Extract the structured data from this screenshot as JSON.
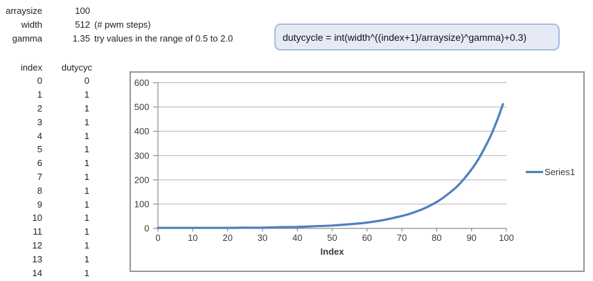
{
  "sheet": {
    "params": [
      {
        "label": "arraysize",
        "value": "100",
        "note": ""
      },
      {
        "label": "width",
        "value": "512",
        "note": "(# pwm steps)"
      },
      {
        "label": "gamma",
        "value": "1.35",
        "note": "try values in the range of 0.5 to 2.0"
      }
    ],
    "table": {
      "headers": [
        "index",
        "dutycyc"
      ],
      "rows": [
        [
          0,
          0
        ],
        [
          1,
          1
        ],
        [
          2,
          1
        ],
        [
          3,
          1
        ],
        [
          4,
          1
        ],
        [
          5,
          1
        ],
        [
          6,
          1
        ],
        [
          7,
          1
        ],
        [
          8,
          1
        ],
        [
          9,
          1
        ],
        [
          10,
          1
        ],
        [
          11,
          1
        ],
        [
          12,
          1
        ],
        [
          13,
          1
        ],
        [
          14,
          1
        ]
      ]
    }
  },
  "formula": {
    "text": "dutycycle = int(width^((index+1)/arraysize)^gamma)+0.3)",
    "background": "#e5eaf6",
    "border_color": "#a7bcdf"
  },
  "chart_data": {
    "type": "line",
    "title": "",
    "xlabel": "Index",
    "ylabel": "",
    "xlim": [
      0,
      100
    ],
    "ylim": [
      0,
      600
    ],
    "xticks": [
      0,
      10,
      20,
      30,
      40,
      50,
      60,
      70,
      80,
      90,
      100
    ],
    "yticks": [
      0,
      100,
      200,
      300,
      400,
      500,
      600
    ],
    "grid": "horizontal",
    "legend_position": "right",
    "frame_color": "#979797",
    "gridline_color": "#b3b3b3",
    "axis_color": "#8c8c8c",
    "series": [
      {
        "name": "Series1",
        "color": "#4F81BD",
        "x": [
          0,
          5,
          10,
          15,
          20,
          25,
          30,
          35,
          40,
          45,
          50,
          55,
          60,
          65,
          70,
          72,
          75,
          77,
          80,
          82,
          85,
          87,
          90,
          92,
          95,
          96,
          97,
          98,
          99
        ],
        "values": [
          0,
          1,
          1,
          1,
          2,
          3,
          3,
          5,
          6,
          9,
          12,
          17,
          24,
          35,
          51,
          59,
          74,
          86,
          109,
          128,
          162,
          190,
          243,
          286,
          366,
          398,
          433,
          470,
          512
        ]
      }
    ]
  }
}
